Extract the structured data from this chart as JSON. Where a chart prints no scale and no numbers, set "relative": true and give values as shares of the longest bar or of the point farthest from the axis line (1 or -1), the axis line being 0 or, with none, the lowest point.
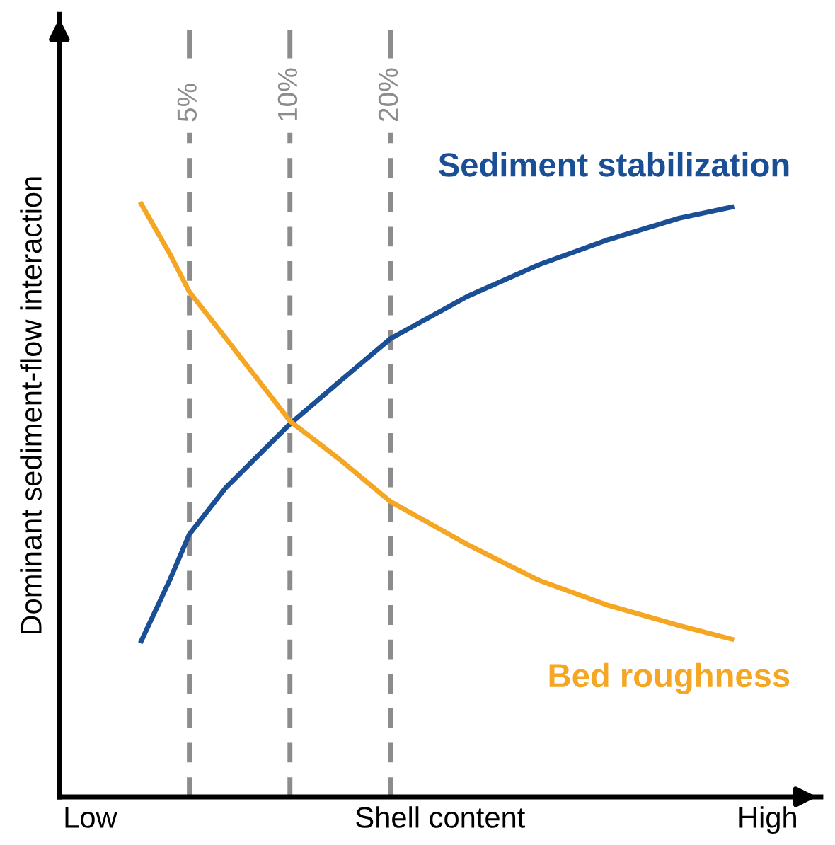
{
  "chart_data": {
    "type": "line",
    "relative": true,
    "log": "x",
    "xlabel": "Shell content",
    "ylabel": "Dominant sediment-flow interaction",
    "xlim": [
      2.04,
      388
    ],
    "xticks": [
      {
        "value": 5,
        "label": "5%"
      },
      {
        "value": 10,
        "label": "10%"
      },
      {
        "value": 20,
        "label": "20%"
      }
    ],
    "annotations": [
      "Low",
      "High"
    ],
    "tick_labels": "x",
    "grid": false,
    "legend": false,
    "marker": "none",
    "line_style": "solid",
    "series": [
      {
        "name": "Sediment stabilization",
        "color": "#1a4f96",
        "x": [
          3.59,
          4.37,
          5,
          6.44,
          10,
          14.1,
          20,
          33.9,
          55.2,
          89.8,
          146,
          210
        ],
        "values": [
          0.263,
          0.366,
          0.443,
          0.522,
          0.629,
          0.701,
          0.773,
          0.844,
          0.897,
          0.94,
          0.976,
          0.995
        ]
      },
      {
        "name": "Bed roughness",
        "color": "#f5a623",
        "x": [
          3.59,
          4.37,
          5,
          6.44,
          10,
          14.1,
          20,
          33.9,
          55.2,
          89.8,
          146,
          210
        ],
        "values": [
          1,
          0.916,
          0.852,
          0.773,
          0.634,
          0.569,
          0.498,
          0.426,
          0.366,
          0.323,
          0.289,
          0.266
        ]
      }
    ],
    "ref_lines": [
      {
        "axis": "x",
        "value": 5,
        "color": "#8c8c8c",
        "line_style": "dashed"
      },
      {
        "axis": "x",
        "value": 10,
        "color": "#8c8c8c",
        "line_style": "dashed"
      },
      {
        "axis": "x",
        "value": 20,
        "color": "#8c8c8c",
        "line_style": "dashed"
      }
    ]
  }
}
